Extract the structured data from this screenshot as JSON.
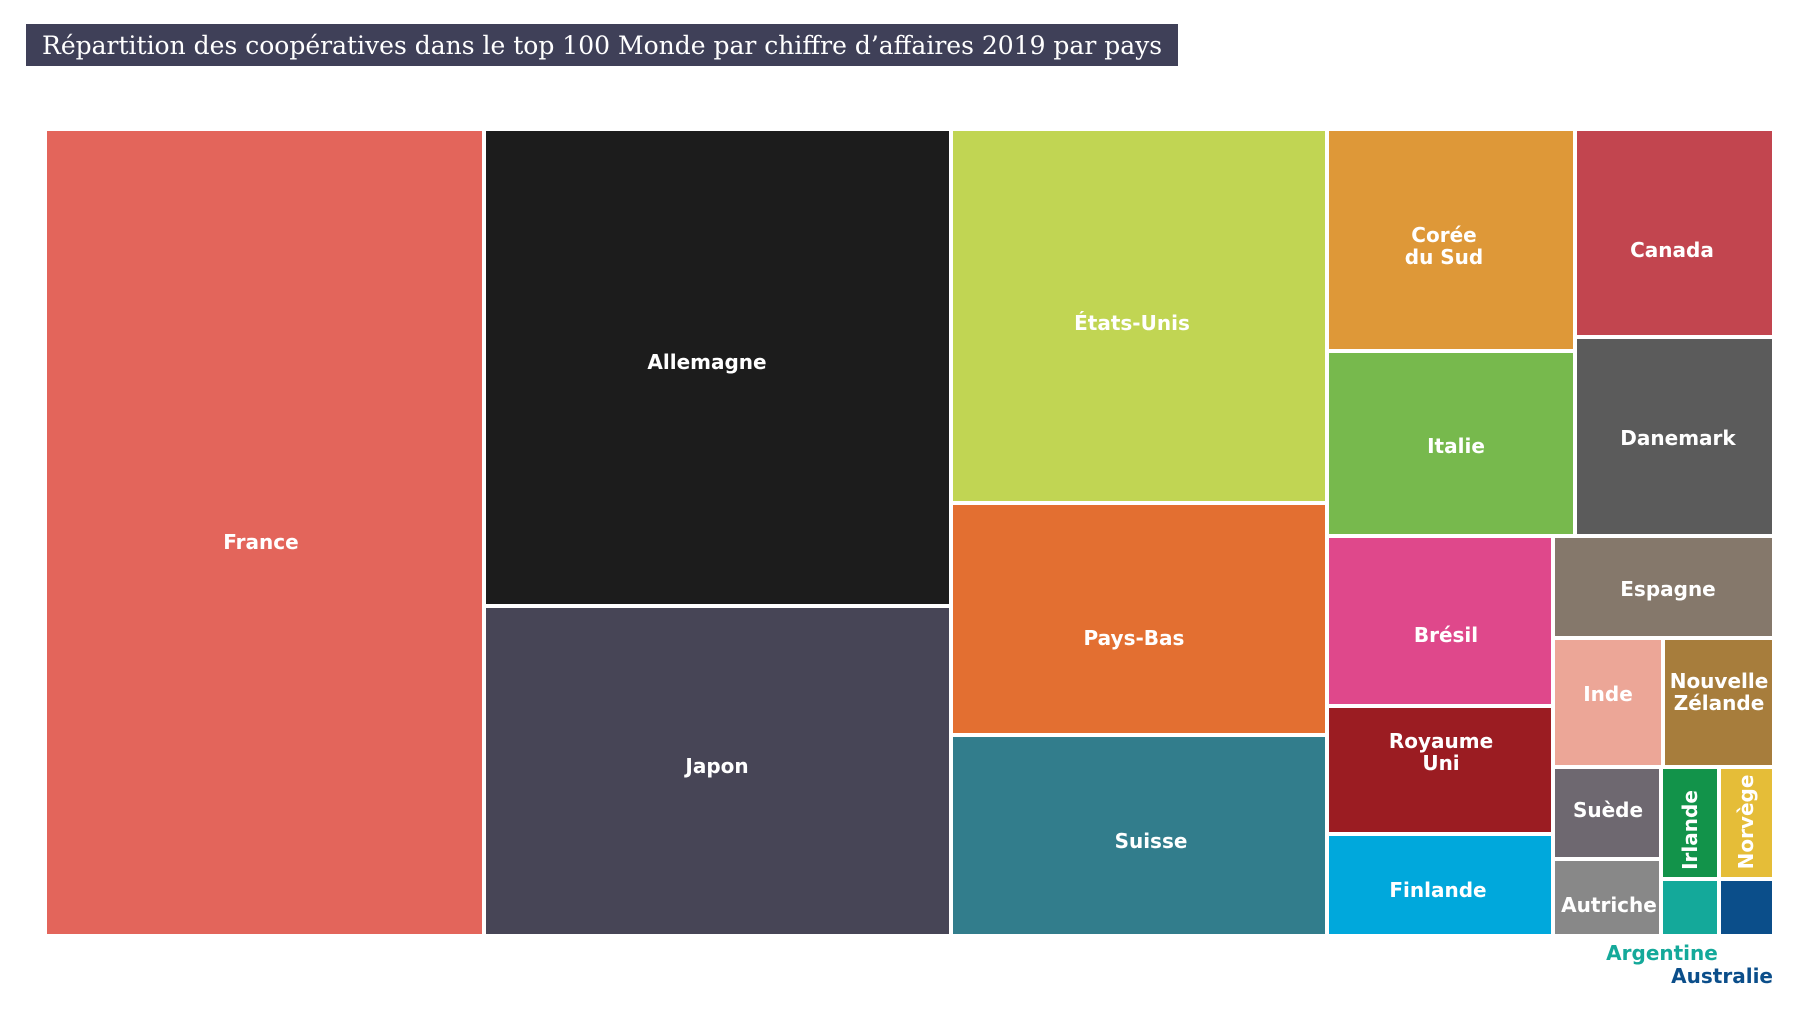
{
  "title": "Répartition des coopératives dans le top 100 Monde par chiffre d’affaires 2019 par pays",
  "chart_data": {
    "type": "treemap",
    "title": "Répartition des coopératives dans le top 100 Monde par chiffre d’affaires 2019 par pays",
    "units": "relative area share (approx.)",
    "items": [
      {
        "name": "France",
        "label_lines": [
          "France"
        ],
        "value": 24.6,
        "color": "#e3655b"
      },
      {
        "name": "Allemagne",
        "label_lines": [
          "Allemagne"
        ],
        "value": 15.2,
        "color": "#1c1c1c"
      },
      {
        "name": "Japon",
        "label_lines": [
          "Japon"
        ],
        "value": 10.6,
        "color": "#474556"
      },
      {
        "name": "États-Unis",
        "label_lines": [
          "États-Unis"
        ],
        "value": 9.7,
        "color": "#c1d553"
      },
      {
        "name": "Pays-Bas",
        "label_lines": [
          "Pays-Bas"
        ],
        "value": 6.1,
        "color": "#e36f31"
      },
      {
        "name": "Suisse",
        "label_lines": [
          "Suisse"
        ],
        "value": 5.2,
        "color": "#327d8c"
      },
      {
        "name": "Corée du Sud",
        "label_lines": [
          "Corée",
          "du Sud"
        ],
        "value": 3.7,
        "color": "#de9838"
      },
      {
        "name": "Italie",
        "label_lines": [
          "Italie"
        ],
        "value": 3.1,
        "color": "#77b94d"
      },
      {
        "name": "Canada",
        "label_lines": [
          "Canada"
        ],
        "value": 2.8,
        "color": "#c2454f"
      },
      {
        "name": "Danemark",
        "label_lines": [
          "Danemark"
        ],
        "value": 2.6,
        "color": "#5b5b5b"
      },
      {
        "name": "Brésil",
        "label_lines": [
          "Brésil"
        ],
        "value": 2.6,
        "color": "#df488b"
      },
      {
        "name": "Royaume Uni",
        "label_lines": [
          "Royaume",
          "Uni"
        ],
        "value": 1.9,
        "color": "#9b1c22"
      },
      {
        "name": "Finlande",
        "label_lines": [
          "Finlande"
        ],
        "value": 1.6,
        "color": "#00a8dc"
      },
      {
        "name": "Espagne",
        "label_lines": [
          "Espagne"
        ],
        "value": 1.5,
        "color": "#85786b"
      },
      {
        "name": "Inde",
        "label_lines": [
          "Inde"
        ],
        "value": 1.2,
        "color": "#eca697"
      },
      {
        "name": "Nouvelle Zélande",
        "label_lines": [
          "Nouvelle",
          "Zélande"
        ],
        "value": 1.2,
        "color": "#a77d3c"
      },
      {
        "name": "Suède",
        "label_lines": [
          "Suède"
        ],
        "value": 0.7,
        "color": "#6e6870"
      },
      {
        "name": "Irlande",
        "label_lines": [
          "Irlande"
        ],
        "value": 0.5,
        "color": "#12934a"
      },
      {
        "name": "Norvège",
        "label_lines": [
          "Norvège"
        ],
        "value": 0.5,
        "color": "#e5bd38"
      },
      {
        "name": "Autriche",
        "label_lines": [
          "Autriche"
        ],
        "value": 0.7,
        "color": "#888888"
      },
      {
        "name": "Argentine",
        "label_lines": [
          "Argentine"
        ],
        "value": 0.3,
        "color": "#14a99a"
      },
      {
        "name": "Australie",
        "label_lines": [
          "Australie"
        ],
        "value": 0.3,
        "color": "#0b4e8a"
      }
    ]
  }
}
